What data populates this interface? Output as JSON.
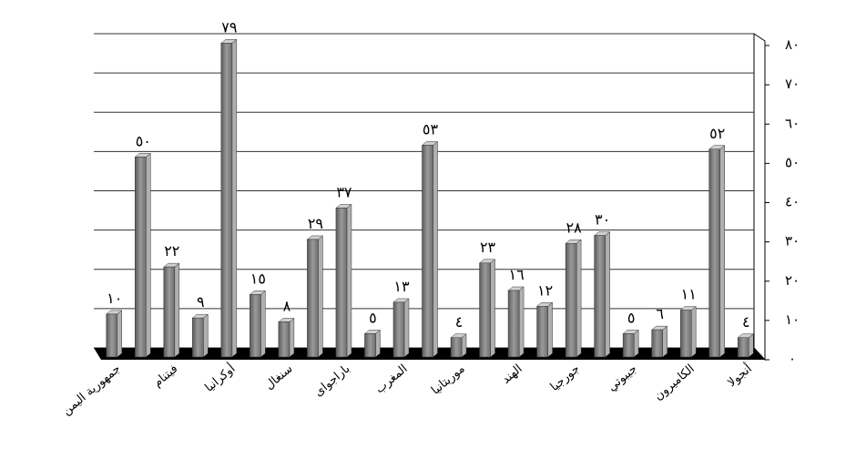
{
  "chart_data": {
    "type": "bar3d",
    "categories": [
      "جمهورية اليمن",
      null,
      "فيتنام",
      null,
      "أوكرانيا",
      null,
      "سنغال",
      null,
      "باراجواى",
      null,
      "المغرب",
      null,
      "موريتانيا",
      null,
      "الهند",
      null,
      "جورجيا",
      null,
      "جيبوتي",
      null,
      "الكاميرون",
      null,
      "أنجولا"
    ],
    "values": [
      10,
      50,
      22,
      9,
      79,
      15,
      8,
      29,
      37,
      5,
      13,
      53,
      4,
      23,
      16,
      12,
      28,
      30,
      5,
      6,
      11,
      52,
      4
    ],
    "value_labels": [
      "١٠",
      "٥٠",
      "٢٢",
      "٩",
      "٧٩",
      "١٥",
      "٨",
      "٢٩",
      "٣٧",
      "٥",
      "١٣",
      "٥٣",
      "٤",
      "٢٣",
      "١٦",
      "١٢",
      "٢٨",
      "٣٠",
      "٥",
      "٦",
      "١١",
      "٥٢",
      "٤"
    ],
    "color": "#8c8c8c",
    "ylim": [
      0,
      80
    ],
    "yticks": [
      {
        "value": 0,
        "label": "٠"
      },
      {
        "value": 10,
        "label": "١٠"
      },
      {
        "value": 20,
        "label": "٢٠"
      },
      {
        "value": 30,
        "label": "٣٠"
      },
      {
        "value": 40,
        "label": "٤٠"
      },
      {
        "value": 50,
        "label": "٥٠"
      },
      {
        "value": 60,
        "label": "٦٠"
      },
      {
        "value": 70,
        "label": "٧٠"
      },
      {
        "value": 80,
        "label": "٨٠"
      }
    ],
    "grid": true
  }
}
